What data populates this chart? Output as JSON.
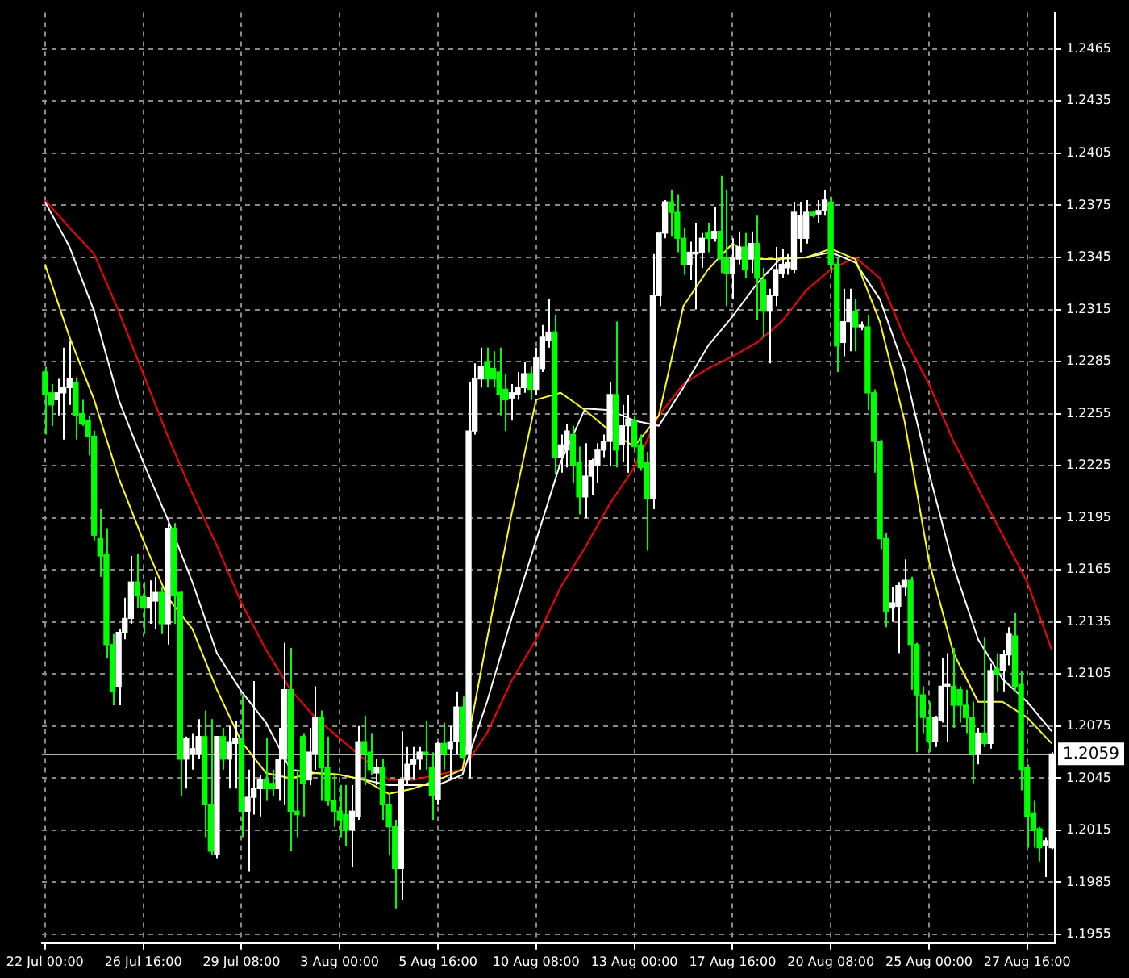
{
  "chart_data": {
    "type": "candlestick",
    "categories": [
      "22 Jul 00:00",
      null,
      null,
      null,
      null,
      null,
      null,
      null,
      null,
      null,
      null,
      null,
      null,
      null,
      null,
      null,
      "26 Jul 16:00",
      null,
      null,
      null,
      null,
      null,
      null,
      null,
      null,
      null,
      null,
      null,
      null,
      null,
      null,
      null,
      "29 Jul 08:00",
      null,
      null,
      null,
      null,
      null,
      null,
      null,
      null,
      null,
      null,
      null,
      null,
      null,
      null,
      null,
      "3 Aug 00:00",
      null,
      null,
      null,
      null,
      null,
      null,
      null,
      null,
      null,
      null,
      null,
      null,
      null,
      null,
      null,
      "5 Aug 16:00",
      null,
      null,
      null,
      null,
      null,
      null,
      null,
      null,
      null,
      null,
      null,
      null,
      null,
      null,
      null,
      "10 Aug 08:00",
      null,
      null,
      null,
      null,
      null,
      null,
      null,
      null,
      null,
      null,
      null,
      null,
      null,
      null,
      null,
      "13 Aug 00:00",
      null,
      null,
      null,
      null,
      null,
      null,
      null,
      null,
      null,
      null,
      null,
      null,
      null,
      null,
      null,
      "17 Aug 16:00",
      null,
      null,
      null,
      null,
      null,
      null,
      null,
      null,
      null,
      null,
      null,
      null,
      null,
      null,
      null,
      "20 Aug 08:00",
      null,
      null,
      null,
      null,
      null,
      null,
      null,
      null,
      null,
      null,
      null,
      null,
      null,
      null,
      null,
      "25 Aug 00:00",
      null,
      null,
      null,
      null,
      null,
      null,
      null,
      null,
      null,
      null,
      null,
      null,
      null,
      null,
      null,
      "27 Aug 16:00",
      null,
      null,
      null,
      null
    ],
    "ylim": [
      1.195,
      1.2486
    ],
    "yticks": [
      1.1955,
      1.1985,
      1.2015,
      1.2045,
      1.2075,
      1.2105,
      1.2135,
      1.2165,
      1.2195,
      1.2225,
      1.2255,
      1.2285,
      1.2315,
      1.2345,
      1.2375,
      1.2405,
      1.2435,
      1.2465
    ],
    "grid": true,
    "ohlc": [
      [
        1.2279,
        1.2282,
        1.2243,
        1.2266
      ],
      [
        1.2267,
        1.2272,
        1.2248,
        1.226
      ],
      [
        1.2263,
        1.2275,
        1.2254,
        1.2267
      ],
      [
        1.2267,
        1.2293,
        1.224,
        1.227
      ],
      [
        1.227,
        1.2297,
        1.226,
        1.2275
      ],
      [
        1.2273,
        1.2276,
        1.224,
        1.2254
      ],
      [
        1.2255,
        1.2263,
        1.2248,
        1.2249
      ],
      [
        1.2251,
        1.2254,
        1.2231,
        1.2242
      ],
      [
        1.2242,
        1.2245,
        1.2182,
        1.2185
      ],
      [
        1.2183,
        1.22,
        1.2161,
        1.2173
      ],
      [
        1.2174,
        1.2189,
        1.2114,
        1.2122
      ],
      [
        1.2122,
        1.2128,
        1.2087,
        1.2095
      ],
      [
        1.2098,
        1.2131,
        1.2087,
        1.2129
      ],
      [
        1.2129,
        1.2149,
        1.2125,
        1.2137
      ],
      [
        1.2137,
        1.2173,
        1.2134,
        1.2158
      ],
      [
        1.2158,
        1.2174,
        1.2143,
        1.215
      ],
      [
        1.215,
        1.2158,
        1.2128,
        1.2143
      ],
      [
        1.2143,
        1.2159,
        1.2134,
        1.2149
      ],
      [
        1.2147,
        1.2161,
        1.2131,
        1.2152
      ],
      [
        1.2152,
        1.2155,
        1.2128,
        1.2134
      ],
      [
        1.2134,
        1.2192,
        1.2122,
        1.2189
      ],
      [
        1.2189,
        1.2192,
        1.2134,
        1.215
      ],
      [
        1.2152,
        1.2153,
        1.2035,
        1.2056
      ],
      [
        1.2056,
        1.2069,
        1.2039,
        1.2068
      ],
      [
        1.2059,
        1.2071,
        1.205,
        1.2062
      ],
      [
        1.2059,
        1.2079,
        1.2056,
        1.2069
      ],
      [
        1.2069,
        1.2084,
        1.2011,
        1.203
      ],
      [
        1.203,
        1.2079,
        1.2001,
        1.2003
      ],
      [
        1.2001,
        1.2069,
        1.1999,
        1.2069
      ],
      [
        1.2069,
        1.2074,
        1.205,
        1.2056
      ],
      [
        1.2056,
        1.2075,
        1.2039,
        1.2066
      ],
      [
        1.2065,
        1.2078,
        1.2039,
        1.2068
      ],
      [
        1.2068,
        1.2093,
        1.2011,
        1.2026
      ],
      [
        1.2026,
        1.205,
        1.1991,
        1.2034
      ],
      [
        1.2034,
        1.2101,
        1.2024,
        1.2039
      ],
      [
        1.2039,
        1.2047,
        1.2023,
        1.2044
      ],
      [
        1.2044,
        1.2068,
        1.2032,
        1.2039
      ],
      [
        1.2042,
        1.205,
        1.2035,
        1.2039
      ],
      [
        1.2039,
        1.2074,
        1.2032,
        1.2056
      ],
      [
        1.2056,
        1.2123,
        1.203,
        1.2096
      ],
      [
        1.2096,
        1.212,
        1.2003,
        1.2026
      ],
      [
        1.2026,
        1.205,
        1.2011,
        1.2024
      ],
      [
        1.2069,
        1.2071,
        1.2023,
        1.2042
      ],
      [
        1.2044,
        1.2074,
        1.2041,
        1.206
      ],
      [
        1.2059,
        1.2098,
        1.205,
        1.208
      ],
      [
        1.208,
        1.2084,
        1.2032,
        1.2051
      ],
      [
        1.2051,
        1.2069,
        1.2029,
        1.2032
      ],
      [
        1.2032,
        1.2047,
        1.2017,
        1.2026
      ],
      [
        1.2026,
        1.2041,
        1.2011,
        1.2021
      ],
      [
        1.2024,
        1.2041,
        1.2006,
        1.2015
      ],
      [
        1.2015,
        1.2041,
        1.1994,
        1.2026
      ],
      [
        1.2023,
        1.2075,
        1.2021,
        1.2066
      ],
      [
        1.2066,
        1.2081,
        1.2041,
        1.2059
      ],
      [
        1.206,
        1.2071,
        1.2047,
        1.205
      ],
      [
        1.2048,
        1.2056,
        1.2041,
        1.2051
      ],
      [
        1.2051,
        1.2056,
        1.2021,
        1.203
      ],
      [
        1.203,
        1.2036,
        1.2001,
        1.2017
      ],
      [
        1.2017,
        1.2021,
        1.197,
        1.1993
      ],
      [
        1.1993,
        1.2072,
        1.1975,
        1.2044
      ],
      [
        1.2044,
        1.2063,
        1.2041,
        1.2053
      ],
      [
        1.2053,
        1.2063,
        1.2044,
        1.2056
      ],
      [
        1.2056,
        1.2063,
        1.205,
        1.206
      ],
      [
        1.206,
        1.2078,
        1.205,
        1.2059
      ],
      [
        1.2051,
        1.206,
        1.2021,
        1.2035
      ],
      [
        1.2033,
        1.2066,
        1.203,
        1.2065
      ],
      [
        1.2065,
        1.2077,
        1.205,
        1.2059
      ],
      [
        1.2062,
        1.2075,
        1.2044,
        1.2066
      ],
      [
        1.2066,
        1.2095,
        1.2059,
        1.2086
      ],
      [
        1.2086,
        1.2092,
        1.2056,
        1.2057
      ],
      [
        1.2059,
        1.2273,
        1.2045,
        1.2245
      ],
      [
        1.2245,
        1.2284,
        1.2243,
        1.2275
      ],
      [
        1.2275,
        1.2293,
        1.227,
        1.2282
      ],
      [
        1.2285,
        1.2293,
        1.227,
        1.2275
      ],
      [
        1.2281,
        1.2291,
        1.227,
        1.2275
      ],
      [
        1.2279,
        1.2293,
        1.2254,
        1.2266
      ],
      [
        1.2269,
        1.2278,
        1.2245,
        1.2263
      ],
      [
        1.2264,
        1.2272,
        1.2251,
        1.2267
      ],
      [
        1.2266,
        1.2279,
        1.2263,
        1.227
      ],
      [
        1.227,
        1.2285,
        1.2267,
        1.2278
      ],
      [
        1.2278,
        1.2282,
        1.2263,
        1.2269
      ],
      [
        1.2269,
        1.2293,
        1.2266,
        1.2287
      ],
      [
        1.2281,
        1.2306,
        1.2279,
        1.2299
      ],
      [
        1.2297,
        1.2321,
        1.2293,
        1.2302
      ],
      [
        1.2302,
        1.2312,
        1.222,
        1.223
      ],
      [
        1.223,
        1.2243,
        1.2221,
        1.2237
      ],
      [
        1.2234,
        1.2249,
        1.2224,
        1.2245
      ],
      [
        1.2243,
        1.2248,
        1.2215,
        1.2225
      ],
      [
        1.2227,
        1.2236,
        1.2197,
        1.2207
      ],
      [
        1.2207,
        1.2238,
        1.2195,
        1.2219
      ],
      [
        1.2219,
        1.2229,
        1.2208,
        1.2228
      ],
      [
        1.2225,
        1.2238,
        1.2215,
        1.2234
      ],
      [
        1.2234,
        1.2243,
        1.223,
        1.2239
      ],
      [
        1.2239,
        1.2273,
        1.2225,
        1.2266
      ],
      [
        1.2266,
        1.2308,
        1.2224,
        1.2234
      ],
      [
        1.2237,
        1.226,
        1.2227,
        1.2248
      ],
      [
        1.2248,
        1.2266,
        1.2221,
        1.2252
      ],
      [
        1.2251,
        1.2254,
        1.2233,
        1.2236
      ],
      [
        1.2237,
        1.2243,
        1.2222,
        1.2224
      ],
      [
        1.2227,
        1.2233,
        1.2176,
        1.2206
      ],
      [
        1.2206,
        1.2347,
        1.22,
        1.2323
      ],
      [
        1.2323,
        1.236,
        1.2317,
        1.2359
      ],
      [
        1.2359,
        1.2378,
        1.2356,
        1.2377
      ],
      [
        1.2377,
        1.2384,
        1.2357,
        1.2371
      ],
      [
        1.2371,
        1.2381,
        1.2348,
        1.2356
      ],
      [
        1.2356,
        1.2362,
        1.2335,
        1.2341
      ],
      [
        1.2341,
        1.2354,
        1.2332,
        1.2348
      ],
      [
        1.2347,
        1.2365,
        1.2315,
        1.2348
      ],
      [
        1.2348,
        1.2359,
        1.2339,
        1.2356
      ],
      [
        1.2359,
        1.2365,
        1.2348,
        1.2356
      ],
      [
        1.2356,
        1.2374,
        1.2354,
        1.236
      ],
      [
        1.236,
        1.2392,
        1.2336,
        1.2344
      ],
      [
        1.2345,
        1.2384,
        1.2317,
        1.2336
      ],
      [
        1.2336,
        1.2356,
        1.2321,
        1.2345
      ],
      [
        1.2344,
        1.236,
        1.2341,
        1.2351
      ],
      [
        1.2351,
        1.2359,
        1.2333,
        1.2338
      ],
      [
        1.2344,
        1.236,
        1.2336,
        1.2353
      ],
      [
        1.2353,
        1.2369,
        1.2309,
        1.2333
      ],
      [
        1.2332,
        1.2339,
        1.2299,
        1.2314
      ],
      [
        1.2314,
        1.2327,
        1.2284,
        1.2323
      ],
      [
        1.2323,
        1.2351,
        1.2317,
        1.2338
      ],
      [
        1.2336,
        1.235,
        1.2333,
        1.2341
      ],
      [
        1.2339,
        1.2347,
        1.2335,
        1.2342
      ],
      [
        1.2338,
        1.2377,
        1.2336,
        1.2371
      ],
      [
        1.2356,
        1.2377,
        1.2348,
        1.2369
      ],
      [
        1.2356,
        1.2378,
        1.2353,
        1.2371
      ],
      [
        1.2371,
        1.2372,
        1.2368,
        1.2369
      ],
      [
        1.237,
        1.2378,
        1.2365,
        1.2372
      ],
      [
        1.2372,
        1.2384,
        1.2369,
        1.2378
      ],
      [
        1.2377,
        1.238,
        1.2336,
        1.2341
      ],
      [
        1.2341,
        1.2345,
        1.2279,
        1.2294
      ],
      [
        1.2296,
        1.2327,
        1.2288,
        1.2308
      ],
      [
        1.2308,
        1.2327,
        1.2291,
        1.2321
      ],
      [
        1.2314,
        1.2321,
        1.2291,
        1.2305
      ],
      [
        1.2305,
        1.2308,
        1.2303,
        1.2306
      ],
      [
        1.2305,
        1.2312,
        1.2257,
        1.2267
      ],
      [
        1.2267,
        1.2269,
        1.2221,
        1.2239
      ],
      [
        1.2239,
        1.224,
        1.2177,
        1.2183
      ],
      [
        1.2183,
        1.2186,
        1.2132,
        1.2141
      ],
      [
        1.2143,
        1.2155,
        1.2135,
        1.2146
      ],
      [
        1.2144,
        1.2158,
        1.2117,
        1.2156
      ],
      [
        1.2155,
        1.2171,
        1.215,
        1.2159
      ],
      [
        1.2159,
        1.2161,
        1.2096,
        1.2122
      ],
      [
        1.2122,
        1.2123,
        1.206,
        1.2093
      ],
      [
        1.2093,
        1.2098,
        1.2071,
        1.208
      ],
      [
        1.208,
        1.2089,
        1.206,
        1.2066
      ],
      [
        1.2066,
        1.2081,
        1.2063,
        1.208
      ],
      [
        1.2078,
        1.2114,
        1.2077,
        1.2098
      ],
      [
        1.2098,
        1.2117,
        1.2066,
        1.2099
      ],
      [
        1.2098,
        1.212,
        1.2074,
        1.2087
      ],
      [
        1.2096,
        1.2098,
        1.2077,
        1.2087
      ],
      [
        1.2087,
        1.2096,
        1.2071,
        1.208
      ],
      [
        1.208,
        1.2089,
        1.2042,
        1.2059
      ],
      [
        1.2059,
        1.2074,
        1.2053,
        1.2071
      ],
      [
        1.2071,
        1.2126,
        1.2063,
        1.2065
      ],
      [
        1.2065,
        1.2111,
        1.2062,
        1.2107
      ],
      [
        1.2108,
        1.2117,
        1.2095,
        1.2105
      ],
      [
        1.2107,
        1.2119,
        1.2095,
        1.2116
      ],
      [
        1.2116,
        1.2132,
        1.211,
        1.2128
      ],
      [
        1.2127,
        1.214,
        1.2095,
        1.2098
      ],
      [
        1.2099,
        1.2107,
        1.2038,
        1.205
      ],
      [
        1.2051,
        1.2053,
        1.2005,
        1.2023
      ],
      [
        1.2025,
        1.2032,
        1.2005,
        1.2015
      ],
      [
        1.2016,
        1.2017,
        1.1997,
        1.2005
      ],
      [
        1.2006,
        1.2011,
        1.1988,
        1.2009
      ],
      [
        1.2005,
        1.206,
        1.2004,
        1.2059
      ]
    ],
    "colors": [
      "#00ff00",
      "#00ff00",
      "#ffffff",
      "#ffffff",
      "#ffffff",
      "#00ff00",
      "#00ff00",
      "#00ff00",
      "#00ff00",
      "#00ff00",
      "#00ff00",
      "#00ff00",
      "#ffffff",
      "#ffffff",
      "#ffffff",
      "#00ff00",
      "#00ff00",
      "#ffffff",
      "#ffffff",
      "#00ff00",
      "#ffffff",
      "#00ff00",
      "#00ff00",
      "#ffffff",
      "#ffffff",
      "#ffffff",
      "#00ff00",
      "#00ff00",
      "#ffffff",
      "#00ff00",
      "#ffffff",
      "#ffffff",
      "#00ff00",
      "#ffffff",
      "#ffffff",
      "#ffffff",
      "#00ff00",
      "#00ff00",
      "#ffffff",
      "#ffffff",
      "#00ff00",
      "#00ff00",
      "#00ff00",
      "#ffffff",
      "#ffffff",
      "#00ff00",
      "#00ff00",
      "#00ff00",
      "#00ff00",
      "#00ff00",
      "#ffffff",
      "#ffffff",
      "#00ff00",
      "#00ff00",
      "#ffffff",
      "#00ff00",
      "#00ff00",
      "#00ff00",
      "#ffffff",
      "#ffffff",
      "#ffffff",
      "#ffffff",
      "#00ff00",
      "#00ff00",
      "#ffffff",
      "#00ff00",
      "#ffffff",
      "#ffffff",
      "#00ff00",
      "#ffffff",
      "#ffffff",
      "#ffffff",
      "#00ff00",
      "#00ff00",
      "#00ff00",
      "#00ff00",
      "#ffffff",
      "#ffffff",
      "#ffffff",
      "#00ff00",
      "#ffffff",
      "#ffffff",
      "#ffffff",
      "#00ff00",
      "#ffffff",
      "#ffffff",
      "#00ff00",
      "#00ff00",
      "#ffffff",
      "#ffffff",
      "#ffffff",
      "#ffffff",
      "#ffffff",
      "#00ff00",
      "#ffffff",
      "#ffffff",
      "#00ff00",
      "#00ff00",
      "#00ff00",
      "#ffffff",
      "#ffffff",
      "#ffffff",
      "#00ff00",
      "#00ff00",
      "#00ff00",
      "#ffffff",
      "#ffffff",
      "#ffffff",
      "#00ff00",
      "#ffffff",
      "#00ff00",
      "#00ff00",
      "#ffffff",
      "#ffffff",
      "#00ff00",
      "#ffffff",
      "#00ff00",
      "#00ff00",
      "#ffffff",
      "#ffffff",
      "#ffffff",
      "#ffffff",
      "#ffffff",
      "#ffffff",
      "#ffffff",
      "#00ff00",
      "#ffffff",
      "#ffffff",
      "#00ff00",
      "#00ff00",
      "#ffffff",
      "#ffffff",
      "#00ff00",
      "#ffffff",
      "#00ff00",
      "#00ff00",
      "#00ff00",
      "#00ff00",
      "#ffffff",
      "#ffffff",
      "#ffffff",
      "#00ff00",
      "#00ff00",
      "#00ff00",
      "#00ff00",
      "#ffffff",
      "#ffffff",
      "#ffffff",
      "#00ff00",
      "#00ff00",
      "#00ff00",
      "#00ff00",
      "#ffffff",
      "#00ff00",
      "#ffffff",
      "#00ff00",
      "#ffffff",
      "#ffffff",
      "#00ff00",
      "#00ff00",
      "#00ff00",
      "#00ff00",
      "#00ff00",
      "#ffffff",
      "#ffffff"
    ],
    "series": [
      {
        "type": "line",
        "color": "#ffff00",
        "values": [
          1.2341,
          null,
          null,
          null,
          1.2299,
          null,
          null,
          null,
          1.2263,
          null,
          null,
          null,
          1.2218,
          null,
          null,
          null,
          1.2182,
          null,
          null,
          null,
          1.2149,
          null,
          null,
          null,
          1.2131,
          null,
          null,
          null,
          1.2096,
          null,
          null,
          null,
          1.2066,
          null,
          null,
          null,
          1.2048,
          null,
          null,
          null,
          1.2045,
          null,
          null,
          null,
          1.2048,
          null,
          null,
          null,
          1.2047,
          null,
          null,
          null,
          1.2044,
          null,
          null,
          null,
          1.2036,
          null,
          null,
          null,
          1.2039,
          null,
          null,
          null,
          1.2044,
          null,
          null,
          null,
          1.205,
          null,
          null,
          null,
          1.2125,
          null,
          null,
          null,
          1.2197,
          null,
          null,
          null,
          1.2263,
          null,
          null,
          null,
          1.2267,
          null,
          null,
          null,
          1.2257,
          null,
          null,
          null,
          1.2245,
          null,
          null,
          null,
          1.2236,
          null,
          null,
          null,
          1.2254,
          null,
          null,
          null,
          1.2317,
          null,
          null,
          null,
          1.2338,
          null,
          null,
          null,
          1.2353,
          null,
          null,
          null,
          1.2344,
          null,
          null,
          null,
          1.2344,
          null,
          null,
          null,
          1.2345,
          null,
          null,
          null,
          1.235,
          null,
          null,
          null,
          1.2344,
          null,
          null,
          null,
          1.2308,
          null,
          null,
          null,
          1.2251,
          null,
          null,
          null,
          1.217,
          null,
          null,
          null,
          1.2117,
          null,
          null,
          null,
          1.2089,
          null,
          null,
          null,
          1.2089,
          null,
          null,
          null,
          1.208,
          null,
          null,
          null,
          1.2065
        ]
      },
      {
        "type": "line",
        "color": "#ffffff",
        "values": [
          1.2377,
          null,
          null,
          null,
          1.2351,
          null,
          null,
          null,
          1.2314,
          null,
          null,
          null,
          1.2263,
          null,
          null,
          null,
          1.2227,
          null,
          null,
          null,
          1.2194,
          null,
          null,
          null,
          1.2158,
          null,
          null,
          null,
          1.2117,
          null,
          null,
          null,
          1.2095,
          null,
          null,
          null,
          1.2077,
          null,
          null,
          null,
          1.205,
          null,
          null,
          null,
          1.2048,
          null,
          null,
          null,
          1.2047,
          null,
          null,
          null,
          1.2044,
          null,
          null,
          null,
          1.2041,
          null,
          null,
          null,
          1.2041,
          null,
          null,
          null,
          1.2041,
          null,
          null,
          null,
          1.2047,
          null,
          null,
          null,
          1.2089,
          null,
          null,
          null,
          1.2137,
          null,
          null,
          null,
          1.2182,
          null,
          null,
          null,
          1.2227,
          null,
          null,
          null,
          1.2258,
          null,
          null,
          null,
          1.2257,
          null,
          null,
          null,
          1.2251,
          null,
          null,
          null,
          1.2248,
          null,
          null,
          null,
          1.227,
          null,
          null,
          null,
          1.2294,
          null,
          null,
          null,
          1.2311,
          null,
          null,
          null,
          1.233,
          null,
          null,
          null,
          1.2345,
          null,
          null,
          null,
          1.2345,
          null,
          null,
          null,
          1.2348,
          null,
          null,
          null,
          1.2342,
          null,
          null,
          null,
          1.2321,
          null,
          null,
          null,
          1.2281,
          null,
          null,
          null,
          1.2221,
          null,
          null,
          null,
          1.2167,
          null,
          null,
          null,
          1.2125,
          null,
          null,
          null,
          1.2102,
          null,
          null,
          null,
          1.2089,
          null,
          null,
          null,
          1.2072
        ]
      },
      {
        "type": "line",
        "color": "#ff0000",
        "values": [
          1.2378,
          null,
          null,
          null,
          1.2362,
          null,
          null,
          null,
          1.2347,
          null,
          null,
          null,
          1.2314,
          null,
          null,
          null,
          1.2278,
          null,
          null,
          null,
          1.2242,
          null,
          null,
          null,
          1.2209,
          null,
          null,
          null,
          1.2179,
          null,
          null,
          null,
          1.2146,
          null,
          null,
          null,
          1.2119,
          null,
          null,
          null,
          1.2096,
          null,
          null,
          null,
          1.208,
          null,
          null,
          null,
          1.2068,
          null,
          null,
          null,
          1.2056,
          null,
          null,
          null,
          1.2044,
          null,
          null,
          null,
          1.2044,
          null,
          null,
          null,
          null,
          null,
          null,
          null,
          1.205,
          null,
          null,
          null,
          1.2071,
          null,
          null,
          null,
          1.2101,
          null,
          null,
          null,
          1.2125,
          null,
          null,
          null,
          1.2155,
          null,
          null,
          null,
          1.2178,
          null,
          null,
          null,
          1.2203,
          null,
          null,
          null,
          1.2224,
          null,
          null,
          null,
          1.2254,
          null,
          null,
          null,
          1.2272,
          null,
          null,
          null,
          1.2281,
          null,
          null,
          null,
          1.2288,
          null,
          null,
          null,
          1.2296,
          null,
          null,
          null,
          1.2308,
          null,
          null,
          null,
          1.2326,
          null,
          null,
          null,
          1.2338,
          null,
          null,
          null,
          1.2345,
          null,
          null,
          null,
          1.2333,
          null,
          null,
          null,
          1.2299,
          null,
          null,
          null,
          1.2272,
          null,
          null,
          null,
          1.2239,
          null,
          null,
          null,
          1.2212,
          null,
          null,
          null,
          1.2185,
          null,
          null,
          null,
          1.2158,
          null,
          null,
          null,
          1.2119
        ]
      }
    ],
    "ref_lines": [
      {
        "axis": "y",
        "value": 1.2059,
        "label": "1.2059",
        "color": "#b0b0b0"
      }
    ]
  }
}
